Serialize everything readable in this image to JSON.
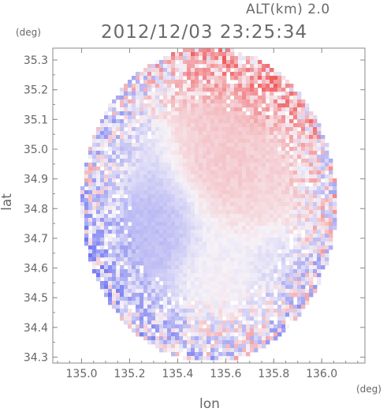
{
  "header": {
    "altitude": "ALT(km) 2.0",
    "timestamp": "2012/12/03 23:25:34"
  },
  "chart_data": {
    "type": "heatmap",
    "title": "2012/12/03 23:25:34",
    "xlabel": "lon",
    "ylabel": "lat",
    "x_unit": "(deg)",
    "y_unit": "(deg)",
    "xlim": [
      134.88,
      136.18
    ],
    "ylim": [
      34.28,
      35.34
    ],
    "x_ticks": [
      135.0,
      135.2,
      135.4,
      135.6,
      135.8,
      136.0
    ],
    "x_tick_labels": [
      "135.0",
      "135.2",
      "135.4",
      "135.6",
      "135.8",
      "136.0"
    ],
    "y_ticks": [
      34.3,
      34.4,
      34.5,
      34.6,
      34.7,
      34.8,
      34.9,
      35.0,
      35.1,
      35.2,
      35.3
    ],
    "y_tick_labels": [
      "34.3",
      "34.4",
      "34.5",
      "34.6",
      "34.7",
      "34.8",
      "34.9",
      "35.0",
      "35.1",
      "35.2",
      "35.3"
    ],
    "domain": {
      "center_lon": 135.53,
      "center_lat": 34.815,
      "radius_deg": 0.53
    },
    "colormap": {
      "negative": "#6f74f2",
      "zero": "#f6f2f7",
      "positive": "#f0595c"
    },
    "regions": [
      {
        "lon": 135.72,
        "lat": 35.22,
        "value": 0.45
      },
      {
        "lon": 135.62,
        "lat": 34.99,
        "value": 0.25
      },
      {
        "lon": 135.8,
        "lat": 34.9,
        "value": 0.2
      },
      {
        "lon": 135.05,
        "lat": 34.95,
        "value": -0.15
      },
      {
        "lon": 135.25,
        "lat": 34.72,
        "value": -0.4
      },
      {
        "lon": 135.1,
        "lat": 34.55,
        "value": -0.35
      },
      {
        "lon": 135.55,
        "lat": 34.5,
        "value": 0.0
      },
      {
        "lon": 135.85,
        "lat": 34.6,
        "value": -0.15
      },
      {
        "lon": 135.95,
        "lat": 34.8,
        "value": 0.05
      },
      {
        "lon": 135.35,
        "lat": 34.35,
        "value": -0.3
      }
    ],
    "grid": false,
    "legend": "none"
  }
}
